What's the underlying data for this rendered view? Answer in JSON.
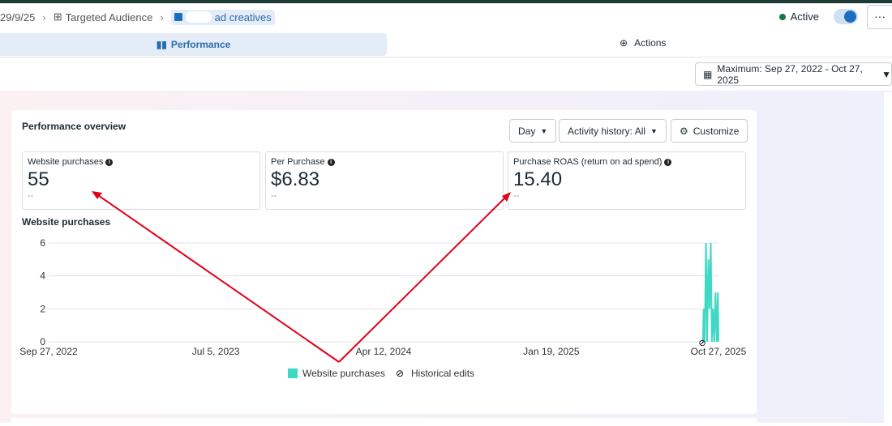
{
  "breadcrumb": {
    "date": "29/9/25",
    "audience": "Targeted Audience",
    "current": "ad creatives"
  },
  "status": {
    "label": "Active",
    "color": "#0f7b44",
    "toggle_on": true
  },
  "more_label": "···",
  "tabs": [
    {
      "label": "Performance",
      "icon": "bar-chart-icon",
      "active": true
    },
    {
      "label": "Actions",
      "icon": "arrow-up-circle-icon",
      "active": false
    }
  ],
  "date_range": "Maximum: Sep 27, 2022 - Oct 27, 2025",
  "overview": {
    "title": "Performance overview",
    "day": "Day",
    "activity": "Activity history: All",
    "customize": "Customize",
    "metrics": [
      {
        "label": "Website purchases",
        "value": "55",
        "delta": "--"
      },
      {
        "label": "Per Purchase",
        "value": "$6.83",
        "delta": "--"
      },
      {
        "label": "Purchase ROAS (return on ad spend)",
        "value": "15.40",
        "delta": "--"
      }
    ],
    "chart_title": "Website purchases"
  },
  "chart_data": {
    "type": "line",
    "xlim": [
      "2022-09-27",
      "2025-10-27"
    ],
    "ylim": [
      0,
      6
    ],
    "yticks": [
      "0",
      "2",
      "4",
      "6"
    ],
    "xticks": [
      {
        "date": "2022-09-27",
        "label": "Sep 27, 2022"
      },
      {
        "date": "2023-07-05",
        "label": "Jul 5, 2023"
      },
      {
        "date": "2024-04-12",
        "label": "Apr 12, 2024"
      },
      {
        "date": "2025-01-19",
        "label": "Jan 19, 2025"
      },
      {
        "date": "2025-10-27",
        "label": "Oct 27, 2025"
      }
    ],
    "series": [
      {
        "name": "Website purchases",
        "color": "#3fd8c4",
        "points": [
          [
            "2025-10-01",
            0
          ],
          [
            "2025-10-02",
            2
          ],
          [
            "2025-10-04",
            0
          ],
          [
            "2025-10-06",
            6
          ],
          [
            "2025-10-08",
            0
          ],
          [
            "2025-10-10",
            5
          ],
          [
            "2025-10-12",
            2
          ],
          [
            "2025-10-14",
            6
          ],
          [
            "2025-10-16",
            0
          ],
          [
            "2025-10-18",
            2
          ],
          [
            "2025-10-20",
            0
          ],
          [
            "2025-10-22",
            3
          ],
          [
            "2025-10-24",
            0
          ],
          [
            "2025-10-26",
            3
          ],
          [
            "2025-10-27",
            0
          ]
        ]
      }
    ],
    "legend": [
      "Website purchases",
      "Historical edits"
    ],
    "legend_position": "bottom",
    "grid": true
  },
  "annotation_color": "#e0001a"
}
